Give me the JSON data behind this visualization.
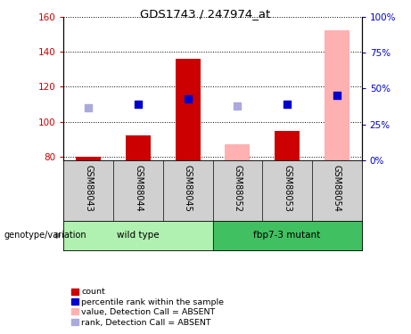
{
  "title": "GDS1743 / 247974_at",
  "samples": [
    "GSM88043",
    "GSM88044",
    "GSM88045",
    "GSM88052",
    "GSM88053",
    "GSM88054"
  ],
  "group_labels": [
    "wild type",
    "fbp7-3 mutant"
  ],
  "ylim_left": [
    78,
    160
  ],
  "ylim_right": [
    0,
    100
  ],
  "yticks_left": [
    80,
    100,
    120,
    140,
    160
  ],
  "yticks_right": [
    0,
    25,
    50,
    75,
    100
  ],
  "yticklabels_right": [
    "0%",
    "25%",
    "50%",
    "75%",
    "100%"
  ],
  "bar_bottom": 78,
  "bar_color_present": "#cc0000",
  "bar_color_absent": "#ffb0b0",
  "dot_color_present": "#0000cc",
  "dot_color_absent": "#aaaadd",
  "count_values": [
    80,
    92,
    136,
    null,
    95,
    null
  ],
  "rank_values": [
    null,
    110,
    113,
    null,
    110,
    115
  ],
  "count_absent_values": [
    null,
    null,
    null,
    87,
    null,
    152
  ],
  "rank_absent_values": [
    108,
    null,
    null,
    109,
    null,
    null
  ],
  "bar_width": 0.5,
  "dot_size": 40,
  "bg_color": "#ffffff",
  "label_area_color": "#d0d0d0",
  "wild_type_color": "#b0f0b0",
  "mutant_color": "#40c060",
  "genotype_label": "genotype/variation",
  "legend_items": [
    {
      "label": "count",
      "color": "#cc0000"
    },
    {
      "label": "percentile rank within the sample",
      "color": "#0000cc"
    },
    {
      "label": "value, Detection Call = ABSENT",
      "color": "#ffb0b0"
    },
    {
      "label": "rank, Detection Call = ABSENT",
      "color": "#aaaadd"
    }
  ]
}
